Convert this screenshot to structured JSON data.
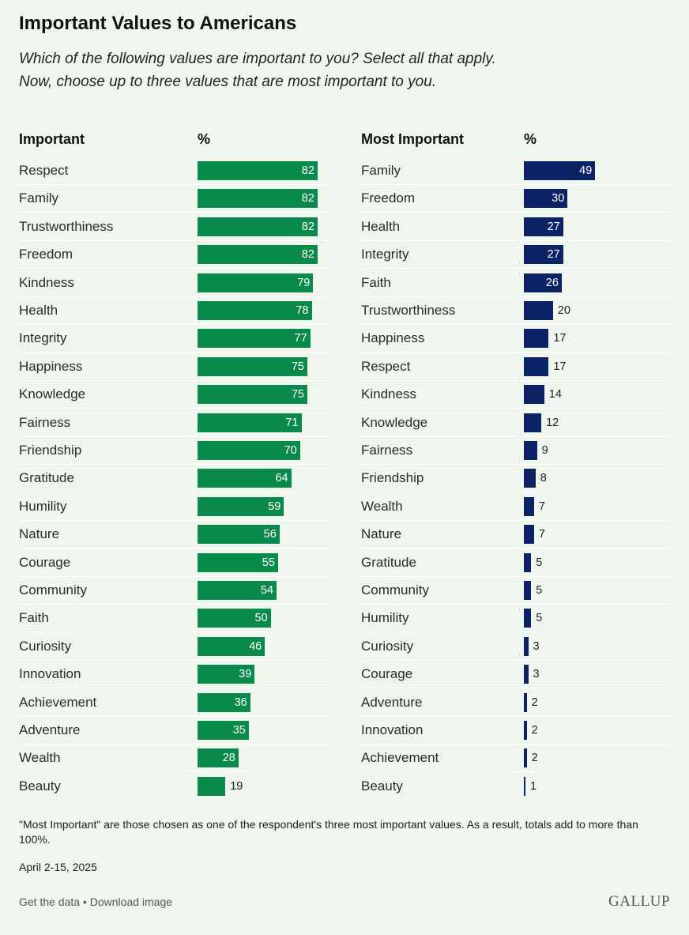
{
  "title": "Important Values to Americans",
  "subtitle_line1": "Which of the following values are important to you? Select all that apply.",
  "subtitle_line2": "Now, choose up to three values that are most important to you.",
  "chart_data": [
    {
      "type": "bar",
      "orientation": "horizontal",
      "label_header": "Important",
      "value_header": "%",
      "color": "#0a8a4a",
      "xlim": [
        0,
        100
      ],
      "categories": [
        "Respect",
        "Family",
        "Trustworthiness",
        "Freedom",
        "Kindness",
        "Health",
        "Integrity",
        "Happiness",
        "Knowledge",
        "Fairness",
        "Friendship",
        "Gratitude",
        "Humility",
        "Nature",
        "Courage",
        "Community",
        "Faith",
        "Curiosity",
        "Innovation",
        "Achievement",
        "Adventure",
        "Wealth",
        "Beauty"
      ],
      "values": [
        82,
        82,
        82,
        82,
        79,
        78,
        77,
        75,
        75,
        71,
        70,
        64,
        59,
        56,
        55,
        54,
        50,
        46,
        39,
        36,
        35,
        28,
        19
      ]
    },
    {
      "type": "bar",
      "orientation": "horizontal",
      "label_header": "Most Important",
      "value_header": "%",
      "color": "#0b2265",
      "xlim": [
        0,
        100
      ],
      "categories": [
        "Family",
        "Freedom",
        "Health",
        "Integrity",
        "Faith",
        "Trustworthiness",
        "Happiness",
        "Respect",
        "Kindness",
        "Knowledge",
        "Fairness",
        "Friendship",
        "Wealth",
        "Nature",
        "Gratitude",
        "Community",
        "Humility",
        "Curiosity",
        "Courage",
        "Adventure",
        "Innovation",
        "Achievement",
        "Beauty"
      ],
      "values": [
        49,
        30,
        27,
        27,
        26,
        20,
        17,
        17,
        14,
        12,
        9,
        8,
        7,
        7,
        5,
        5,
        5,
        3,
        3,
        2,
        2,
        2,
        1
      ]
    }
  ],
  "footer": {
    "note": "\"Most Important\" are those chosen as one of the respondent's three most important values. As a result, totals add to more than 100%.",
    "date": "April 2-15, 2025",
    "get_data": "Get the data",
    "separator": " • ",
    "download": "Download image",
    "logo": "GALLUP"
  }
}
